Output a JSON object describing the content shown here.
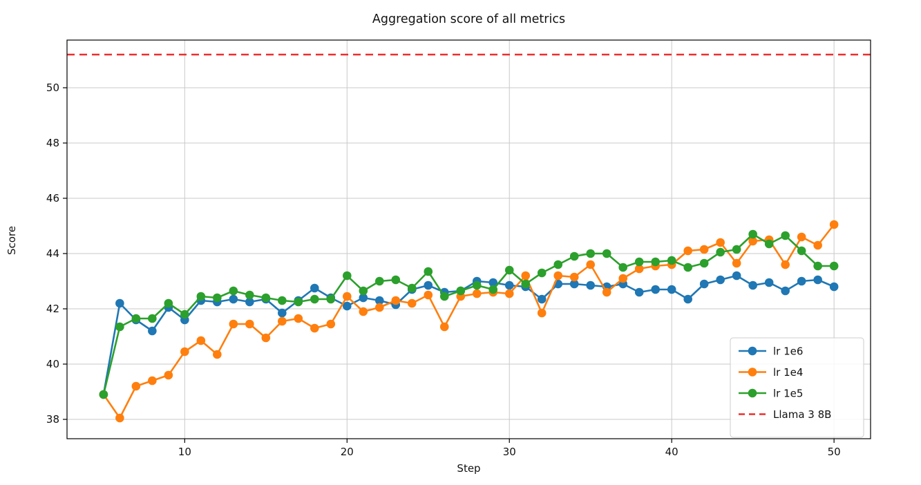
{
  "chart_data": {
    "type": "line",
    "title": "Aggregation score of all metrics",
    "xlabel": "Step",
    "ylabel": "Score",
    "x": [
      5,
      6,
      7,
      8,
      9,
      10,
      11,
      12,
      13,
      14,
      15,
      16,
      17,
      18,
      19,
      20,
      21,
      22,
      23,
      24,
      25,
      26,
      27,
      28,
      29,
      30,
      31,
      32,
      33,
      34,
      35,
      36,
      37,
      38,
      39,
      40,
      41,
      42,
      43,
      44,
      45,
      46,
      47,
      48,
      49,
      50
    ],
    "series": [
      {
        "name": "lr 1e6",
        "color": "#1f77b4",
        "values": [
          38.9,
          42.2,
          41.6,
          41.2,
          42.05,
          41.6,
          42.3,
          42.25,
          42.35,
          42.25,
          42.35,
          41.85,
          42.3,
          42.75,
          42.4,
          42.1,
          42.4,
          42.3,
          42.15,
          42.7,
          42.85,
          42.6,
          42.65,
          43.0,
          42.95,
          42.85,
          42.8,
          42.35,
          42.9,
          42.9,
          42.85,
          42.8,
          42.9,
          42.6,
          42.7,
          42.7,
          42.35,
          42.9,
          43.05,
          43.2,
          42.85,
          42.95,
          42.65,
          43.0,
          43.05,
          42.8
        ]
      },
      {
        "name": "lr 1e4",
        "color": "#ff7f0e",
        "values": [
          38.9,
          38.05,
          39.2,
          39.4,
          39.6,
          40.45,
          40.85,
          40.35,
          41.45,
          41.45,
          40.95,
          41.55,
          41.65,
          41.3,
          41.45,
          42.45,
          41.9,
          42.05,
          42.3,
          42.2,
          42.5,
          41.35,
          42.45,
          42.55,
          42.6,
          42.55,
          43.2,
          41.85,
          43.2,
          43.15,
          43.6,
          42.6,
          43.1,
          43.45,
          43.55,
          43.6,
          44.1,
          44.15,
          44.4,
          43.65,
          44.45,
          44.5,
          43.6,
          44.6,
          44.3,
          45.05
        ]
      },
      {
        "name": "lr 1e5",
        "color": "#2ca02c",
        "values": [
          38.9,
          41.35,
          41.65,
          41.65,
          42.2,
          41.8,
          42.45,
          42.4,
          42.65,
          42.5,
          42.4,
          42.3,
          42.25,
          42.35,
          42.35,
          43.2,
          42.65,
          43.0,
          43.05,
          42.75,
          43.35,
          42.45,
          42.65,
          42.85,
          42.7,
          43.4,
          42.9,
          43.3,
          43.6,
          43.9,
          44.0,
          44.0,
          43.5,
          43.7,
          43.7,
          43.75,
          43.5,
          43.65,
          44.05,
          44.15,
          44.7,
          44.35,
          44.65,
          44.1,
          43.55,
          43.55
        ]
      }
    ],
    "baseline": {
      "name": "Llama 3 8B",
      "value": 51.2,
      "color": "#ed2d2d",
      "style": "dashed"
    },
    "xticks": [
      10,
      20,
      30,
      40,
      50
    ],
    "yticks": [
      38,
      40,
      42,
      44,
      46,
      48,
      50
    ],
    "xlim": [
      2.75,
      52.25
    ],
    "ylim": [
      37.3,
      51.725
    ],
    "grid": true,
    "legend_position": "lower right"
  }
}
